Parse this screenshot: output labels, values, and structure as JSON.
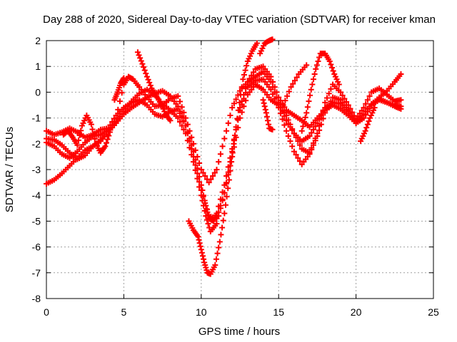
{
  "chart_data": {
    "type": "scatter",
    "title": "Day 288 of 2020, Sidereal Day-to-day VTEC variation (SDTVAR) for receiver kman",
    "xlabel": "GPS time / hours",
    "ylabel": "SDTVAR / TECUs",
    "xlim": [
      0,
      25
    ],
    "ylim": [
      -8,
      2
    ],
    "xticks": [
      0,
      5,
      10,
      15,
      20,
      25
    ],
    "yticks": [
      -8,
      -7,
      -6,
      -5,
      -4,
      -3,
      -2,
      -1,
      0,
      1,
      2
    ],
    "grid": true,
    "marker": "+",
    "color": "#ff0000",
    "series": [
      {
        "points": [
          [
            0,
            -3.55
          ],
          [
            0.5,
            -3.4
          ],
          [
            1.0,
            -3.15
          ],
          [
            1.5,
            -2.85
          ],
          [
            2.0,
            -2.55
          ],
          [
            2.5,
            -2.25
          ],
          [
            3.0,
            -2.1
          ],
          [
            3.5,
            -1.85
          ],
          [
            4.0,
            -1.55
          ],
          [
            4.5,
            -1.2
          ],
          [
            5.0,
            -0.85
          ],
          [
            5.5,
            -0.6
          ],
          [
            6.0,
            -0.4
          ],
          [
            6.5,
            -0.2
          ],
          [
            7.0,
            -0.05
          ],
          [
            7.5,
            0.05
          ],
          [
            8.0,
            -0.15
          ],
          [
            8.5,
            -0.55
          ],
          [
            9.0,
            -1.3
          ],
          [
            9.5,
            -2.3
          ],
          [
            10.0,
            -3.6
          ],
          [
            10.3,
            -4.4
          ],
          [
            10.5,
            -4.9
          ],
          [
            10.8,
            -5.0
          ],
          [
            11.0,
            -4.7
          ],
          [
            11.5,
            -3.6
          ],
          [
            12.0,
            -2.2
          ],
          [
            12.5,
            -0.7
          ],
          [
            13.0,
            0.2
          ],
          [
            13.5,
            0.45
          ],
          [
            14.0,
            0.5
          ],
          [
            14.5,
            0.1
          ],
          [
            15.0,
            -0.6
          ],
          [
            15.5,
            -1.5
          ],
          [
            16.0,
            -2.3
          ],
          [
            16.5,
            -2.8
          ],
          [
            17.0,
            -2.4
          ],
          [
            17.5,
            -1.7
          ],
          [
            18.0,
            -0.8
          ],
          [
            18.5,
            -0.2
          ],
          [
            19.0,
            -0.3
          ],
          [
            19.5,
            -0.7
          ],
          [
            20.0,
            -1.2
          ],
          [
            20.5,
            -1.0
          ],
          [
            21.0,
            -0.5
          ],
          [
            21.5,
            -0.3
          ],
          [
            22.0,
            -0.4
          ],
          [
            22.5,
            -0.55
          ],
          [
            22.9,
            -0.65
          ]
        ]
      },
      {
        "points": [
          [
            0,
            -1.95
          ],
          [
            0.5,
            -2.1
          ],
          [
            1.0,
            -2.4
          ],
          [
            1.5,
            -2.55
          ],
          [
            2.0,
            -2.3
          ],
          [
            2.5,
            -1.95
          ],
          [
            3.0,
            -1.7
          ],
          [
            3.5,
            -1.65
          ],
          [
            4.0,
            -1.45
          ],
          [
            4.5,
            -1.15
          ],
          [
            5.0,
            -0.75
          ],
          [
            5.5,
            -0.35
          ],
          [
            6.0,
            -0.05
          ],
          [
            6.5,
            0.1
          ],
          [
            7.0,
            -0.1
          ],
          [
            7.5,
            -0.45
          ],
          [
            8.0,
            -0.7
          ],
          [
            8.5,
            -1.0
          ],
          [
            9.0,
            -1.6
          ],
          [
            9.5,
            -2.7
          ],
          [
            10.0,
            -4.0
          ],
          [
            10.3,
            -4.8
          ],
          [
            10.6,
            -5.4
          ],
          [
            11.0,
            -5.1
          ],
          [
            11.5,
            -3.9
          ],
          [
            12.0,
            -2.5
          ],
          [
            12.5,
            -1.0
          ],
          [
            13.0,
            -0.1
          ],
          [
            13.5,
            0.3
          ],
          [
            14.0,
            0.1
          ],
          [
            14.5,
            -0.3
          ],
          [
            15.0,
            -0.5
          ],
          [
            15.5,
            -0.9
          ],
          [
            16.0,
            -1.6
          ],
          [
            16.5,
            -2.2
          ],
          [
            17.0,
            -2.35
          ],
          [
            17.5,
            -1.6
          ],
          [
            18.0,
            -0.4
          ],
          [
            18.5,
            0.3
          ],
          [
            19.0,
            0.0
          ],
          [
            19.5,
            -0.5
          ],
          [
            20.0,
            -1.05
          ],
          [
            20.5,
            -0.6
          ],
          [
            21.0,
            0.0
          ],
          [
            21.5,
            0.15
          ],
          [
            22.0,
            -0.1
          ],
          [
            22.5,
            -0.35
          ],
          [
            22.9,
            -0.3
          ]
        ]
      },
      {
        "points": [
          [
            0,
            -1.8
          ],
          [
            0.5,
            -1.85
          ],
          [
            1.0,
            -2.05
          ],
          [
            1.5,
            -2.35
          ],
          [
            2.0,
            -2.6
          ],
          [
            2.5,
            -2.45
          ],
          [
            3.0,
            -2.1
          ],
          [
            3.5,
            -1.9
          ],
          [
            4.0,
            -1.55
          ],
          [
            4.5,
            -1.0
          ],
          [
            5.0,
            0.3
          ],
          [
            5.3,
            0.6
          ],
          [
            5.6,
            0.5
          ],
          [
            6.0,
            0.2
          ],
          [
            6.5,
            -0.2
          ],
          [
            7.0,
            -0.55
          ],
          [
            7.5,
            -0.5
          ],
          [
            8.0,
            -0.25
          ],
          [
            8.5,
            -0.15
          ],
          [
            9.0,
            -1.0
          ],
          [
            9.5,
            -2.0
          ],
          [
            10.0,
            -3.0
          ],
          [
            10.5,
            -3.5
          ],
          [
            11.0,
            -3.0
          ],
          [
            11.5,
            -1.8
          ],
          [
            12.0,
            -0.6
          ],
          [
            12.5,
            0.05
          ],
          [
            13.0,
            0.4
          ],
          [
            13.5,
            0.6
          ],
          [
            14.0,
            0.8
          ],
          [
            14.5,
            0.4
          ],
          [
            15.0,
            -0.4
          ],
          [
            15.5,
            -1.1
          ],
          [
            16.0,
            -1.6
          ],
          [
            16.5,
            -1.9
          ],
          [
            17.0,
            -1.7
          ],
          [
            17.5,
            -1.2
          ],
          [
            18.0,
            -0.6
          ],
          [
            18.5,
            -0.4
          ],
          [
            19.0,
            -0.45
          ],
          [
            19.5,
            -0.75
          ],
          [
            20.0,
            -1.1
          ],
          [
            20.5,
            -0.85
          ],
          [
            21.0,
            -0.45
          ],
          [
            21.5,
            -0.25
          ],
          [
            22.0,
            -0.4
          ],
          [
            22.5,
            -0.5
          ],
          [
            22.9,
            -0.55
          ]
        ]
      },
      {
        "points": [
          [
            0,
            -1.5
          ],
          [
            0.5,
            -1.65
          ],
          [
            1.0,
            -1.55
          ],
          [
            1.5,
            -1.4
          ],
          [
            2.0,
            -1.55
          ],
          [
            2.5,
            -1.75
          ],
          [
            3.0,
            -1.65
          ],
          [
            3.5,
            -1.45
          ],
          [
            4.0,
            -1.4
          ],
          [
            4.5,
            -0.9
          ],
          [
            5.0,
            -0.6
          ],
          [
            5.5,
            -0.4
          ],
          [
            6.0,
            -0.3
          ],
          [
            6.5,
            -0.5
          ],
          [
            7.0,
            -0.85
          ],
          [
            7.5,
            -0.95
          ],
          [
            8.0,
            -0.75
          ],
          [
            8.5,
            -0.65
          ],
          [
            9.0,
            -1.3
          ],
          [
            9.5,
            -2.5
          ],
          [
            10.0,
            -3.8
          ],
          [
            10.5,
            -4.8
          ],
          [
            11.0,
            -4.9
          ],
          [
            11.5,
            -3.9
          ],
          [
            12.0,
            -2.3
          ],
          [
            12.5,
            -0.6
          ],
          [
            13.0,
            0.4
          ],
          [
            13.5,
            0.9
          ],
          [
            14.0,
            1.0
          ],
          [
            14.5,
            0.6
          ],
          [
            15.0,
            -0.2
          ],
          [
            15.5,
            -0.7
          ],
          [
            16.0,
            -0.9
          ],
          [
            16.5,
            -1.1
          ],
          [
            17.0,
            -1.35
          ],
          [
            17.5,
            -1.0
          ],
          [
            18.0,
            -0.7
          ],
          [
            18.5,
            -0.5
          ],
          [
            19.0,
            -0.65
          ],
          [
            19.5,
            -0.9
          ],
          [
            20.0,
            -1.2
          ],
          [
            20.5,
            -1.0
          ],
          [
            21.0,
            -0.5
          ],
          [
            21.5,
            -0.2
          ],
          [
            22.0,
            0.05
          ],
          [
            22.5,
            0.4
          ],
          [
            22.9,
            0.7
          ]
        ]
      },
      {
        "points": [
          [
            5.9,
            1.55
          ],
          [
            6.2,
            1.1
          ],
          [
            6.5,
            0.6
          ],
          [
            6.8,
            0.15
          ],
          [
            7.1,
            -0.15
          ],
          [
            7.4,
            -0.45
          ],
          [
            7.7,
            -0.85
          ],
          [
            8.0,
            -1.1
          ]
        ]
      },
      {
        "points": [
          [
            9.2,
            -5.0
          ],
          [
            9.5,
            -5.35
          ],
          [
            9.8,
            -5.6
          ],
          [
            10.0,
            -6.1
          ],
          [
            10.2,
            -6.6
          ],
          [
            10.4,
            -7.0
          ],
          [
            10.6,
            -7.05
          ],
          [
            10.9,
            -6.7
          ],
          [
            11.2,
            -5.8
          ],
          [
            11.5,
            -4.7
          ],
          [
            11.8,
            -3.4
          ],
          [
            12.1,
            -2.0
          ],
          [
            12.4,
            -0.7
          ],
          [
            12.7,
            0.5
          ],
          [
            13.0,
            1.2
          ],
          [
            13.3,
            1.6
          ],
          [
            13.6,
            1.9
          ]
        ]
      },
      {
        "points": [
          [
            13.8,
            1.5
          ],
          [
            14.1,
            1.9
          ],
          [
            14.4,
            2.0
          ],
          [
            14.6,
            2.05
          ]
        ]
      },
      {
        "points": [
          [
            14.0,
            -0.3
          ],
          [
            14.2,
            -0.8
          ],
          [
            14.4,
            -1.4
          ],
          [
            14.6,
            -1.45
          ]
        ]
      },
      {
        "points": [
          [
            15.3,
            -0.5
          ],
          [
            15.8,
            0.2
          ],
          [
            16.3,
            0.7
          ],
          [
            16.8,
            1.05
          ]
        ]
      },
      {
        "points": [
          [
            16.5,
            -1.5
          ],
          [
            16.8,
            -0.8
          ],
          [
            17.1,
            0.1
          ],
          [
            17.4,
            0.9
          ],
          [
            17.7,
            1.5
          ],
          [
            18.0,
            1.5
          ],
          [
            18.3,
            1.2
          ],
          [
            18.6,
            0.7
          ],
          [
            18.9,
            0.3
          ]
        ]
      },
      {
        "points": [
          [
            20.3,
            -1.9
          ],
          [
            20.6,
            -1.5
          ],
          [
            20.9,
            -1.0
          ],
          [
            21.2,
            -0.6
          ]
        ]
      },
      {
        "points": [
          [
            1.1,
            -1.65
          ],
          [
            1.4,
            -1.5
          ],
          [
            1.7,
            -1.75
          ],
          [
            2.0,
            -2.05
          ],
          [
            2.3,
            -1.3
          ],
          [
            2.6,
            -0.9
          ],
          [
            2.9,
            -1.25
          ],
          [
            3.2,
            -2.0
          ],
          [
            3.5,
            -2.35
          ],
          [
            3.8,
            -2.1
          ],
          [
            4.1,
            -1.55
          ]
        ]
      },
      {
        "points": [
          [
            4.4,
            -0.3
          ],
          [
            4.6,
            0.0
          ],
          [
            4.8,
            0.35
          ],
          [
            5.0,
            0.55
          ]
        ]
      }
    ]
  }
}
